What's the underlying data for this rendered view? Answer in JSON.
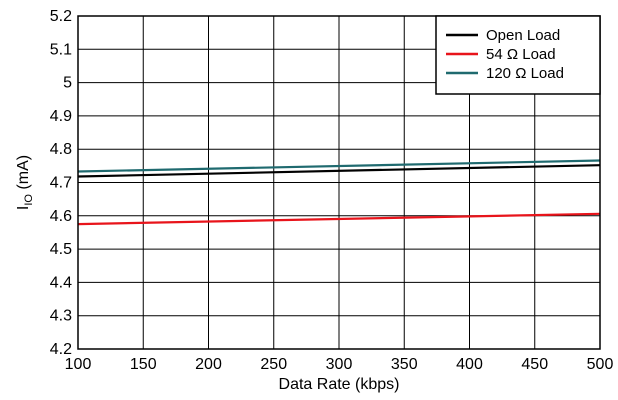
{
  "chart_data": {
    "type": "line",
    "title": "",
    "xlabel": "Data Rate (kbps)",
    "ylabel": {
      "main": "I",
      "sub": "IO",
      "unit": " (mA)"
    },
    "xlim": [
      100,
      500
    ],
    "ylim": [
      4.2,
      5.2
    ],
    "xticks": [
      100,
      150,
      200,
      250,
      300,
      350,
      400,
      450,
      500
    ],
    "yticks": [
      4.2,
      4.3,
      4.4,
      4.5,
      4.6,
      4.7,
      4.8,
      4.9,
      5,
      5.1,
      5.2
    ],
    "xtick_labels": [
      "100",
      "150",
      "200",
      "250",
      "300",
      "350",
      "400",
      "450",
      "500"
    ],
    "ytick_labels": [
      "4.2",
      "4.3",
      "4.4",
      "4.5",
      "4.6",
      "4.7",
      "4.8",
      "4.9",
      "5",
      "5.1",
      "5.2"
    ],
    "grid": true,
    "legend_position": "top-right",
    "series": [
      {
        "name": "Open Load",
        "color": "#000000",
        "x": [
          100,
          500
        ],
        "y": [
          4.718,
          4.752
        ]
      },
      {
        "name": "54 Ω Load",
        "color": "#e8141b",
        "x": [
          100,
          500
        ],
        "y": [
          4.575,
          4.606
        ]
      },
      {
        "name": "120 Ω Load",
        "color": "#1f6a6f",
        "x": [
          100,
          500
        ],
        "y": [
          4.733,
          4.766
        ]
      }
    ]
  }
}
